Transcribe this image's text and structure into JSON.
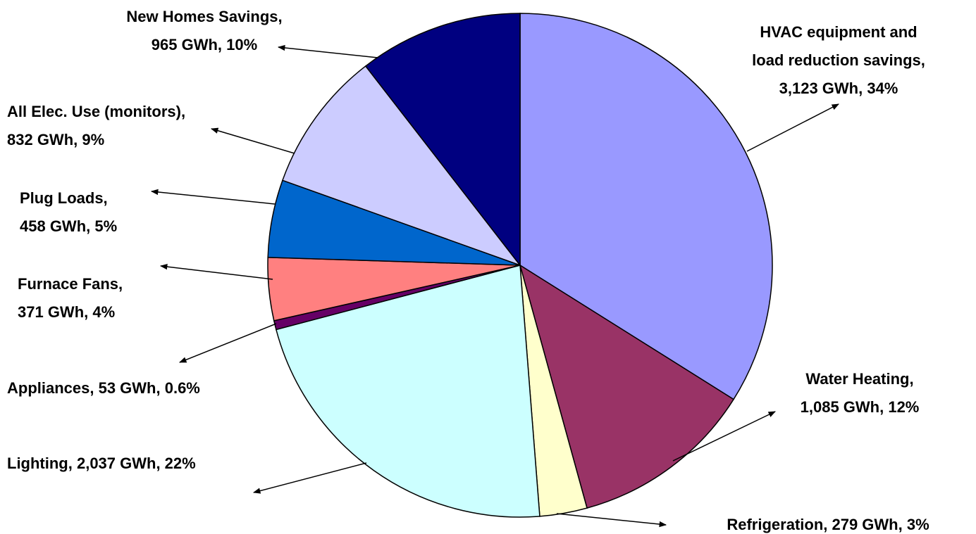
{
  "chart_data": {
    "type": "pie",
    "categories": [
      "HVAC equipment and load reduction savings",
      "Water Heating",
      "Refrigeration",
      "Lighting",
      "Appliances",
      "Furnace Fans",
      "Plug Loads",
      "All Elec. Use (monitors)",
      "New Homes Savings"
    ],
    "values": [
      3123,
      1085,
      279,
      2037,
      53,
      371,
      458,
      832,
      965
    ],
    "labels": [
      [
        "HVAC equipment and",
        "load reduction savings,",
        "3,123 GWh, 34%"
      ],
      [
        "Water Heating,",
        "1,085 GWh, 12%"
      ],
      [
        "Refrigeration, 279 GWh, 3%"
      ],
      [
        "Lighting, 2,037 GWh, 22%"
      ],
      [
        "Appliances, 53 GWh, 0.6%"
      ],
      [
        "Furnace Fans,",
        "371 GWh, 4%"
      ],
      [
        "Plug Loads,",
        "458 GWh, 5%"
      ],
      [
        "All Elec. Use (monitors),",
        "832 GWh, 9%"
      ],
      [
        "New Homes Savings,",
        "965 GWh, 10%"
      ]
    ],
    "colors": [
      "#9999ff",
      "#993366",
      "#ffffcc",
      "#ccffff",
      "#660066",
      "#ff8080",
      "#0066cc",
      "#ccccff",
      "#000080"
    ]
  }
}
